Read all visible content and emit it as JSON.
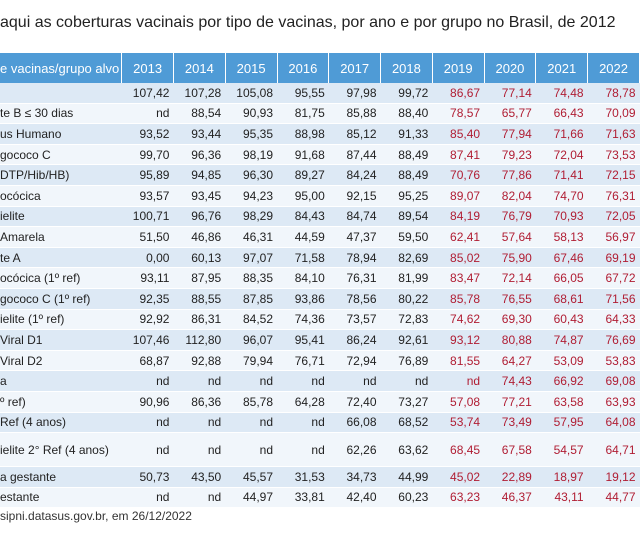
{
  "title": "aqui as coberturas vacinais por tipo de vacinas, por ano e por grupo no Brasil, de 2012",
  "table": {
    "header_label": "e vacinas/grupo alvo",
    "years": [
      "2013",
      "2014",
      "2015",
      "2016",
      "2017",
      "2018",
      "2019",
      "2020",
      "2021",
      "2022"
    ],
    "rows": [
      {
        "name": "",
        "values": [
          "107,42",
          "107,28",
          "105,08",
          "95,55",
          "97,98",
          "99,72",
          "86,67",
          "77,14",
          "74,48",
          "78,78"
        ],
        "tall": false
      },
      {
        "name": "te B ≤ 30 dias",
        "values": [
          "nd",
          "88,54",
          "90,93",
          "81,75",
          "85,88",
          "88,40",
          "78,57",
          "65,77",
          "66,43",
          "70,09"
        ],
        "tall": false
      },
      {
        "name": "us Humano",
        "values": [
          "93,52",
          "93,44",
          "95,35",
          "88,98",
          "85,12",
          "91,33",
          "85,40",
          "77,94",
          "71,66",
          "71,63"
        ],
        "tall": false
      },
      {
        "name": "gococo C",
        "values": [
          "99,70",
          "96,36",
          "98,19",
          "91,68",
          "87,44",
          "88,49",
          "87,41",
          "79,23",
          "72,04",
          "73,53"
        ],
        "tall": false
      },
      {
        "name": "DTP/Hib/HB)",
        "values": [
          "95,89",
          "94,85",
          "96,30",
          "89,27",
          "84,24",
          "88,49",
          "70,76",
          "77,86",
          "71,41",
          "72,15"
        ],
        "tall": false
      },
      {
        "name": "ocócica",
        "values": [
          "93,57",
          "93,45",
          "94,23",
          "95,00",
          "92,15",
          "95,25",
          "89,07",
          "82,04",
          "74,70",
          "76,31"
        ],
        "tall": false
      },
      {
        "name": "ielite",
        "values": [
          "100,71",
          "96,76",
          "98,29",
          "84,43",
          "84,74",
          "89,54",
          "84,19",
          "76,79",
          "70,93",
          "72,05"
        ],
        "tall": false
      },
      {
        "name": "Amarela",
        "values": [
          "51,50",
          "46,86",
          "46,31",
          "44,59",
          "47,37",
          "59,50",
          "62,41",
          "57,64",
          "58,13",
          "56,97"
        ],
        "tall": false
      },
      {
        "name": "te A",
        "values": [
          "0,00",
          "60,13",
          "97,07",
          "71,58",
          "78,94",
          "82,69",
          "85,02",
          "75,90",
          "67,46",
          "69,19"
        ],
        "tall": false
      },
      {
        "name": "ocócica (1º ref)",
        "values": [
          "93,11",
          "87,95",
          "88,35",
          "84,10",
          "76,31",
          "81,99",
          "83,47",
          "72,14",
          "66,05",
          "67,72"
        ],
        "tall": false
      },
      {
        "name": "gococo C (1º ref)",
        "values": [
          "92,35",
          "88,55",
          "87,85",
          "93,86",
          "78,56",
          "80,22",
          "85,78",
          "76,55",
          "68,61",
          "71,56"
        ],
        "tall": false
      },
      {
        "name": "ielite (1º ref)",
        "values": [
          "92,92",
          "86,31",
          "84,52",
          "74,36",
          "73,57",
          "72,83",
          "74,62",
          "69,30",
          "60,43",
          "64,33"
        ],
        "tall": false
      },
      {
        "name": "Viral  D1",
        "values": [
          "107,46",
          "112,80",
          "96,07",
          "95,41",
          "86,24",
          "92,61",
          "93,12",
          "80,88",
          "74,87",
          "76,69"
        ],
        "tall": false
      },
      {
        "name": "Viral  D2",
        "values": [
          "68,87",
          "92,88",
          "79,94",
          "76,71",
          "72,94",
          "76,89",
          "81,55",
          "64,27",
          "53,09",
          "53,83"
        ],
        "tall": false
      },
      {
        "name": "a",
        "values": [
          "nd",
          "nd",
          "nd",
          "nd",
          "nd",
          "nd",
          "nd",
          "74,43",
          "66,92",
          "69,08"
        ],
        "tall": false
      },
      {
        "name": "º ref)",
        "values": [
          "90,96",
          "86,36",
          "85,78",
          "64,28",
          "72,40",
          "73,27",
          "57,08",
          "77,21",
          "63,58",
          "63,93"
        ],
        "tall": false
      },
      {
        "name": "Ref (4 anos)",
        "values": [
          "nd",
          "nd",
          "nd",
          "nd",
          "66,08",
          "68,52",
          "53,74",
          "73,49",
          "57,95",
          "64,08"
        ],
        "tall": false
      },
      {
        "name": "ielite 2° Ref (4 anos)",
        "values": [
          "nd",
          "nd",
          "nd",
          "nd",
          "62,26",
          "63,62",
          "68,45",
          "67,58",
          "54,57",
          "64,71"
        ],
        "tall": true
      },
      {
        "name": "a gestante",
        "values": [
          "50,73",
          "43,50",
          "45,57",
          "31,53",
          "34,73",
          "44,99",
          "45,02",
          "22,89",
          "18,97",
          "19,12"
        ],
        "tall": false
      },
      {
        "name": "estante",
        "values": [
          "nd",
          "nd",
          "44,97",
          "33,81",
          "42,40",
          "60,23",
          "63,23",
          "46,37",
          "43,11",
          "44,77"
        ],
        "tall": false
      }
    ]
  },
  "source": "sipni.datasus.gov.br, em 26/12/2022",
  "colors": {
    "header_bg": "#4f9bd6",
    "row_odd": "#dde9f5",
    "row_even": "#f1f6fb",
    "red_text": "#b01d33"
  }
}
